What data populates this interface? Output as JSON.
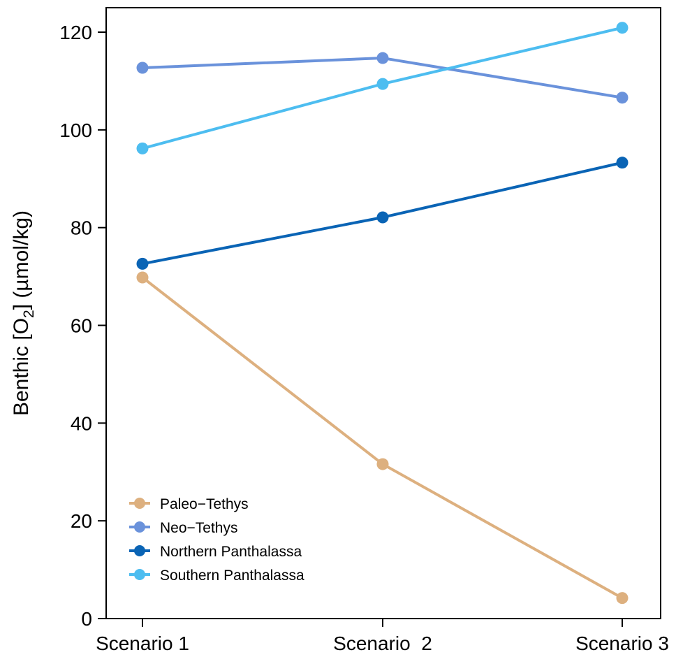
{
  "chart_data": {
    "type": "line",
    "categories": [
      "Scenario 1",
      "Scenario  2",
      "Scenario 3"
    ],
    "ylabel": {
      "prefix": "Benthic  [O",
      "subscript": "2",
      "suffix": "]  (µmol/kg)"
    },
    "ylim": [
      0,
      125
    ],
    "yticks": [
      0,
      20,
      40,
      60,
      80,
      100,
      120
    ],
    "grid": false,
    "legend_position": "bottom-left",
    "series": [
      {
        "name": "Paleo−Tethys",
        "color": "#DDB07F",
        "values": [
          69.8,
          31.6,
          4.2
        ]
      },
      {
        "name": "Neo−Tethys",
        "color": "#6A92DB",
        "values": [
          112.7,
          114.7,
          106.6
        ]
      },
      {
        "name": "Northern Panthalassa",
        "color": "#0A64B5",
        "values": [
          72.6,
          82.1,
          93.3
        ]
      },
      {
        "name": "Southern Panthalassa",
        "color": "#4DBDF0",
        "values": [
          96.2,
          109.4,
          120.9
        ]
      }
    ]
  }
}
